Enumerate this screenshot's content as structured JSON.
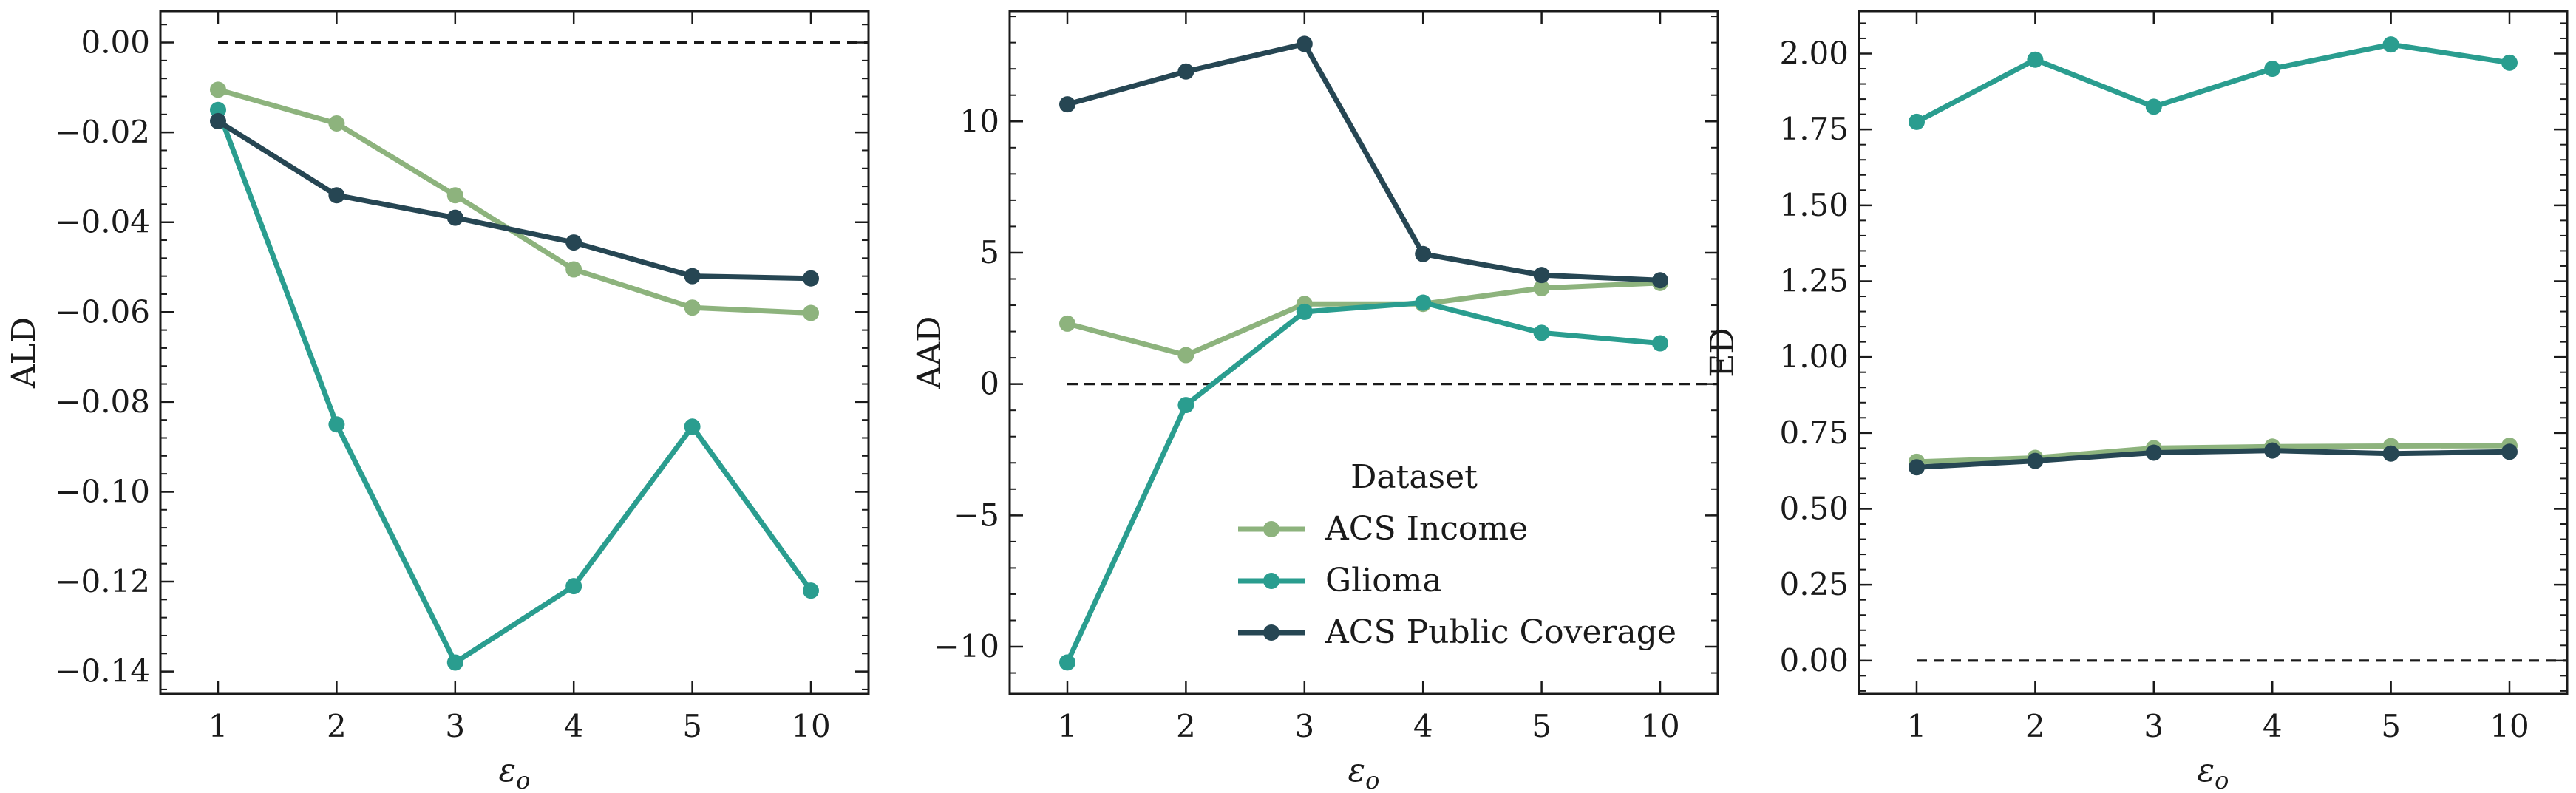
{
  "chart_data": [
    {
      "type": "line",
      "xlabel": "ε_o",
      "ylabel": "ALD",
      "categories": [
        "1",
        "2",
        "3",
        "4",
        "5",
        "10"
      ],
      "ylim": [
        -0.145,
        0.007
      ],
      "yticks": [
        0.0,
        -0.02,
        -0.04,
        -0.06,
        -0.08,
        -0.1,
        -0.12,
        -0.14
      ],
      "ytick_labels": [
        "0.00",
        "−0.02",
        "−0.04",
        "−0.06",
        "−0.08",
        "−0.10",
        "−0.12",
        "−0.14"
      ],
      "reference_line": 0,
      "series": [
        {
          "name": "ACS Income",
          "color": "#8db37d",
          "values": [
            -0.0105,
            -0.018,
            -0.034,
            -0.0505,
            -0.059,
            -0.0602
          ]
        },
        {
          "name": "Glioma",
          "color": "#2a9d8f",
          "values": [
            -0.015,
            -0.085,
            -0.138,
            -0.121,
            -0.0855,
            -0.122
          ]
        },
        {
          "name": "ACS Public Coverage",
          "color": "#264653",
          "values": [
            -0.0175,
            -0.034,
            -0.039,
            -0.0445,
            -0.052,
            -0.0525
          ]
        }
      ]
    },
    {
      "type": "line",
      "xlabel": "ε_o",
      "ylabel": "AAD",
      "categories": [
        "1",
        "2",
        "3",
        "4",
        "5",
        "10"
      ],
      "ylim": [
        -11.8,
        14.2
      ],
      "yticks": [
        10,
        5,
        0,
        -5,
        -10
      ],
      "ytick_labels": [
        "10",
        "5",
        "0",
        "−5",
        "−10"
      ],
      "reference_line": 0,
      "legend": {
        "title": "Dataset",
        "position": "lower-right"
      },
      "series": [
        {
          "name": "ACS Income",
          "color": "#8db37d",
          "values": [
            2.3,
            1.1,
            3.05,
            3.05,
            3.65,
            3.85
          ]
        },
        {
          "name": "Glioma",
          "color": "#2a9d8f",
          "values": [
            -10.6,
            -0.8,
            2.75,
            3.1,
            1.95,
            1.55
          ]
        },
        {
          "name": "ACS Public Coverage",
          "color": "#264653",
          "values": [
            10.65,
            11.9,
            12.95,
            4.95,
            4.15,
            3.95
          ]
        }
      ]
    },
    {
      "type": "line",
      "xlabel": "ε_o",
      "ylabel": "ED",
      "categories": [
        "1",
        "2",
        "3",
        "4",
        "5",
        "10"
      ],
      "ylim": [
        -0.11,
        2.14
      ],
      "yticks": [
        2.0,
        1.75,
        1.5,
        1.25,
        1.0,
        0.75,
        0.5,
        0.25,
        0.0
      ],
      "ytick_labels": [
        "2.00",
        "1.75",
        "1.50",
        "1.25",
        "1.00",
        "0.75",
        "0.50",
        "0.25",
        "0.00"
      ],
      "reference_line": 0,
      "series": [
        {
          "name": "ACS Income",
          "color": "#8db37d",
          "values": [
            0.655,
            0.668,
            0.7,
            0.705,
            0.707,
            0.708
          ]
        },
        {
          "name": "Glioma",
          "color": "#2a9d8f",
          "values": [
            1.775,
            1.98,
            1.825,
            1.95,
            2.03,
            1.97
          ]
        },
        {
          "name": "ACS Public Coverage",
          "color": "#264653",
          "values": [
            0.637,
            0.658,
            0.685,
            0.692,
            0.682,
            0.688
          ]
        }
      ]
    }
  ]
}
